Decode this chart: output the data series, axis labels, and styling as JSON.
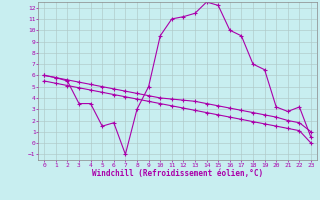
{
  "xlabel": "Windchill (Refroidissement éolien,°C)",
  "background_color": "#c8eef0",
  "line_color": "#aa00aa",
  "grid_color": "#b0c8c8",
  "xlim": [
    -0.5,
    23.5
  ],
  "ylim": [
    -1.5,
    12.5
  ],
  "yticks": [
    -1,
    0,
    1,
    2,
    3,
    4,
    5,
    6,
    7,
    8,
    9,
    10,
    11,
    12
  ],
  "xticks": [
    0,
    1,
    2,
    3,
    4,
    5,
    6,
    7,
    8,
    9,
    10,
    11,
    12,
    13,
    14,
    15,
    16,
    17,
    18,
    19,
    20,
    21,
    22,
    23
  ],
  "line1_x": [
    0,
    1,
    2,
    3,
    4,
    5,
    6,
    7,
    8,
    9,
    10,
    11,
    12,
    13,
    14,
    15,
    16,
    17,
    18,
    19,
    20,
    21,
    22,
    23
  ],
  "line1_y": [
    6.0,
    5.8,
    5.5,
    3.5,
    3.5,
    1.5,
    1.8,
    -1.0,
    3.0,
    5.0,
    9.5,
    11.0,
    11.2,
    11.5,
    12.5,
    12.2,
    10.0,
    9.5,
    7.0,
    6.5,
    3.2,
    2.8,
    3.2,
    0.5
  ],
  "line2_x": [
    0,
    1,
    2,
    3,
    4,
    5,
    6,
    7,
    8,
    9,
    10,
    11,
    12,
    13,
    14,
    15,
    16,
    17,
    18,
    19,
    20,
    21,
    22,
    23
  ],
  "line2_y": [
    6.0,
    5.8,
    5.6,
    5.4,
    5.2,
    5.0,
    4.8,
    4.6,
    4.4,
    4.2,
    4.0,
    3.9,
    3.8,
    3.7,
    3.5,
    3.3,
    3.1,
    2.9,
    2.7,
    2.5,
    2.3,
    2.0,
    1.8,
    1.0
  ],
  "line3_x": [
    0,
    1,
    2,
    3,
    4,
    5,
    6,
    7,
    8,
    9,
    10,
    11,
    12,
    13,
    14,
    15,
    16,
    17,
    18,
    19,
    20,
    21,
    22,
    23
  ],
  "line3_y": [
    5.5,
    5.3,
    5.1,
    4.9,
    4.7,
    4.5,
    4.3,
    4.1,
    3.9,
    3.7,
    3.5,
    3.3,
    3.1,
    2.9,
    2.7,
    2.5,
    2.3,
    2.1,
    1.9,
    1.7,
    1.5,
    1.3,
    1.1,
    0.0
  ]
}
